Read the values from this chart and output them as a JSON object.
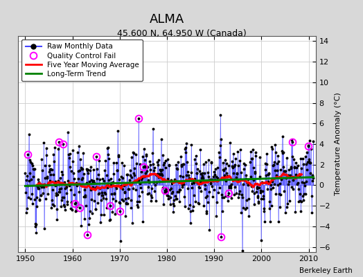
{
  "title": "ALMA",
  "subtitle": "45.600 N, 64.950 W (Canada)",
  "ylabel": "Temperature Anomaly (°C)",
  "credit": "Berkeley Earth",
  "xlim": [
    1948.5,
    2011.5
  ],
  "ylim": [
    -6.5,
    14.5
  ],
  "yticks": [
    -6,
    -4,
    -2,
    0,
    2,
    4,
    6,
    8,
    10,
    12,
    14
  ],
  "xticks": [
    1950,
    1960,
    1970,
    1980,
    1990,
    2000,
    2010
  ],
  "line_color": "#4444ff",
  "marker_color": "black",
  "moving_avg_color": "red",
  "trend_color": "green",
  "qc_fail_color": "magenta",
  "plot_bg": "white",
  "fig_bg": "#d8d8d8",
  "seed": 12,
  "start_year": 1950.0,
  "end_year": 2010.917,
  "n_months": 733
}
